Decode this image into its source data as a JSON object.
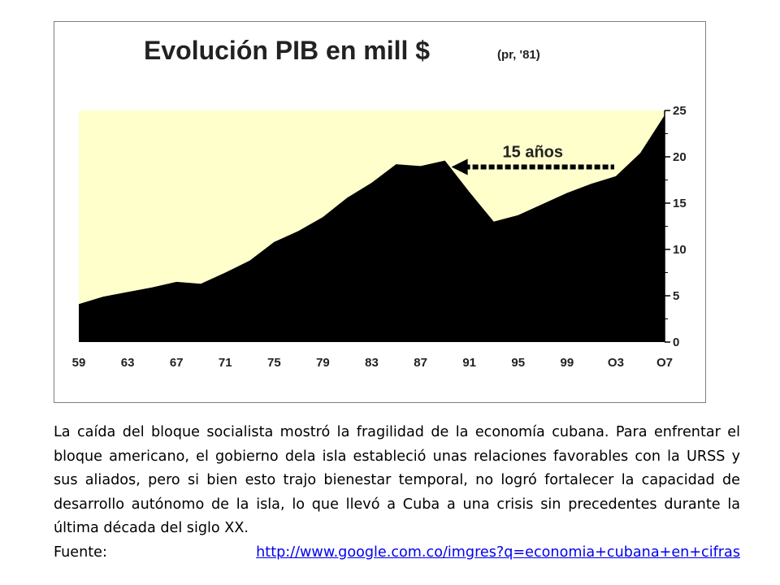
{
  "chart_data": {
    "type": "area",
    "title": "Evolución PIB en mill $",
    "subtitle": "(pr, '81)",
    "x": [
      1959,
      1961,
      1963,
      1965,
      1967,
      1969,
      1971,
      1973,
      1975,
      1977,
      1979,
      1981,
      1983,
      1985,
      1987,
      1989,
      1991,
      1993,
      1995,
      1997,
      1999,
      2001,
      2003,
      2005,
      2007
    ],
    "values": [
      4.1,
      4.9,
      5.4,
      5.9,
      6.5,
      6.3,
      7.5,
      8.8,
      10.8,
      12.0,
      13.5,
      15.6,
      17.2,
      19.2,
      19.0,
      19.6,
      16.2,
      13.0,
      13.7,
      14.9,
      16.1,
      17.1,
      17.9,
      20.4,
      24.5
    ],
    "xticks": [
      "59",
      "63",
      "67",
      "71",
      "75",
      "79",
      "83",
      "87",
      "91",
      "95",
      "99",
      "O3",
      "O7"
    ],
    "yticks": [
      "0",
      "5",
      "10",
      "15",
      "20",
      "25"
    ],
    "xlim": [
      1959,
      2007
    ],
    "ylim": [
      0,
      25
    ],
    "y_axis_position": "right",
    "fill_color": "#000000",
    "background_color": "#ffffcc",
    "annotation": {
      "text": "15 años",
      "from_x": 1989,
      "to_x": 2003,
      "y": 18.9
    }
  },
  "caption": {
    "text": "La caída del bloque socialista mostró la fragilidad de la economía cubana. Para enfrentar el bloque americano, el gobierno dela isla estableció unas relaciones favorables con la URSS y sus aliados, pero si bien esto trajo bienestar temporal, no logró fortalecer la capacidad de desarrollo autónomo de la isla, lo que llevó a Cuba a una crisis sin precedentes durante la última década del siglo XX.",
    "source_label": "Fuente:",
    "source_url": "http://www.google.com.co/imgres?q=economia+cubana+en+cifras"
  }
}
